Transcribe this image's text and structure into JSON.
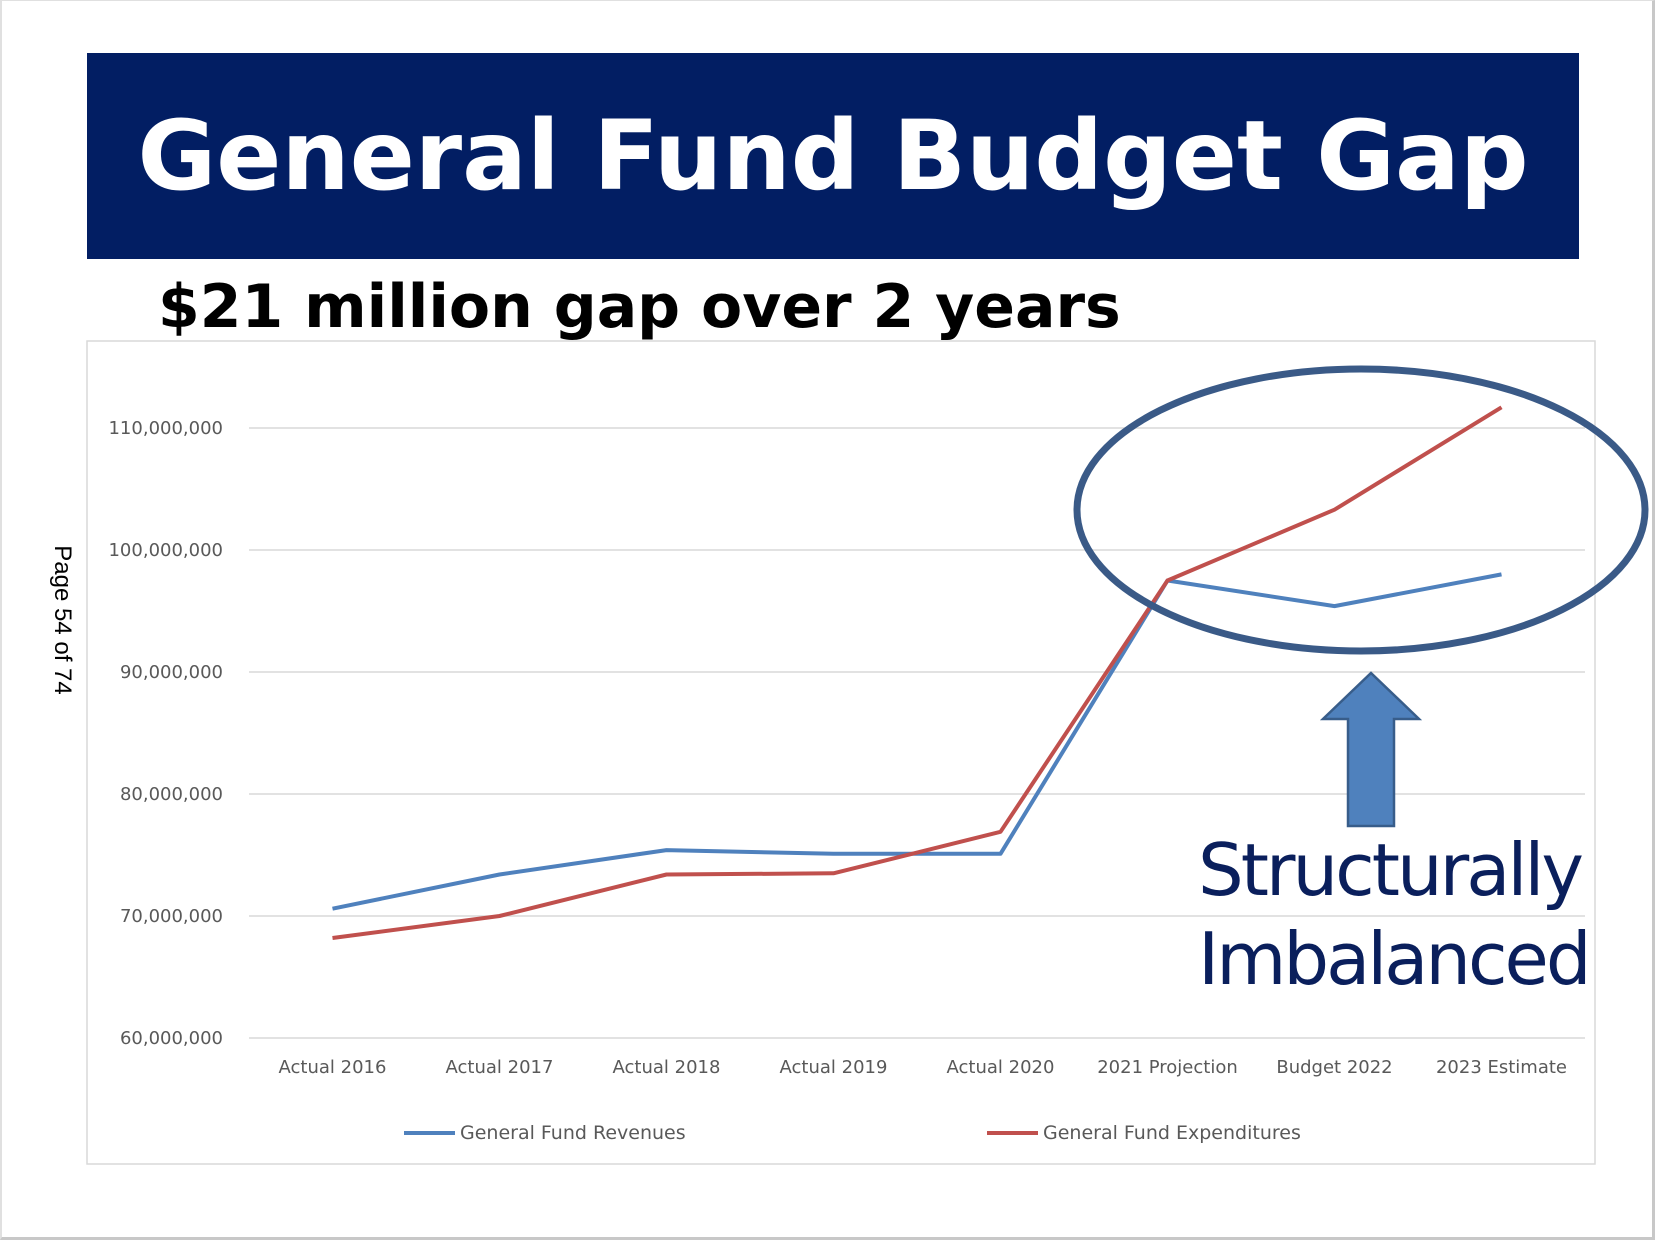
{
  "slide": {
    "title": "General Fund Budget Gap",
    "subtitle": "$21 million gap over 2 years",
    "page_label": "Page 54 of 74",
    "callout_line1": "Structurally",
    "callout_line2": "Imbalanced",
    "colors": {
      "banner": "#021e63",
      "callout_text": "#0a1f5c",
      "ellipse": "#3a5a87",
      "arrow_fill": "#4f81bd"
    }
  },
  "chart_data": {
    "type": "line",
    "title": "",
    "xlabel": "",
    "ylabel": "",
    "categories": [
      "Actual 2016",
      "Actual 2017",
      "Actual 2018",
      "Actual 2019",
      "Actual 2020",
      "2021 Projection",
      "Budget 2022",
      "2023 Estimate"
    ],
    "ylim": [
      60000000,
      110000000
    ],
    "yticks": [
      60000000,
      70000000,
      80000000,
      90000000,
      100000000,
      110000000
    ],
    "ytick_labels": [
      "60,000,000",
      "70,000,000",
      "80,000,000",
      "90,000,000",
      "100,000,000",
      "110,000,000"
    ],
    "grid": true,
    "legend_position": "bottom",
    "series": [
      {
        "name": "General Fund Revenues",
        "color": "#4f81bd",
        "values": [
          70600000,
          73400000,
          75400000,
          75100000,
          75100000,
          97500000,
          95400000,
          98000000
        ]
      },
      {
        "name": "General Fund Expenditures",
        "color": "#c0504d",
        "values": [
          68200000,
          70000000,
          73400000,
          73500000,
          76900000,
          97500000,
          103300000,
          111700000
        ]
      }
    ]
  }
}
